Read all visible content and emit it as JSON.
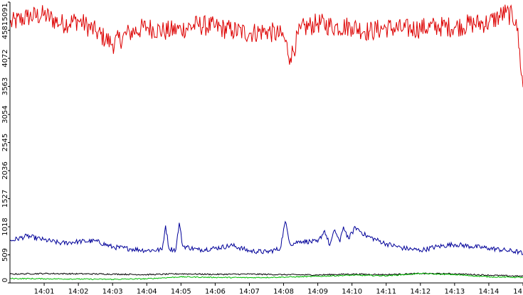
{
  "chart_data": {
    "type": "line",
    "title": "",
    "xlabel": "",
    "ylabel": "",
    "xlim_minutes_after_14_00": [
      0.0,
      15.0
    ],
    "ylim": [
      0,
      5091
    ],
    "grid": false,
    "legend": "none",
    "background": "#ffffff",
    "axis_color": "#000000",
    "y_ticks": [
      0,
      509,
      1018,
      1527,
      2036,
      2545,
      3054,
      3563,
      4072,
      4581,
      5091
    ],
    "x_ticks": [
      {
        "label": "14:01",
        "minute": 1
      },
      {
        "label": "14:02",
        "minute": 2
      },
      {
        "label": "14:03",
        "minute": 3
      },
      {
        "label": "14:04",
        "minute": 4
      },
      {
        "label": "14:05",
        "minute": 5
      },
      {
        "label": "14:06",
        "minute": 6
      },
      {
        "label": "14:07",
        "minute": 7
      },
      {
        "label": "14:08",
        "minute": 8
      },
      {
        "label": "14:09",
        "minute": 9
      },
      {
        "label": "14:10",
        "minute": 10
      },
      {
        "label": "14:11",
        "minute": 11
      },
      {
        "label": "14:12",
        "minute": 12
      },
      {
        "label": "14:13",
        "minute": 13
      },
      {
        "label": "14:14",
        "minute": 14
      },
      {
        "label": "14",
        "minute": 15
      }
    ],
    "series": [
      {
        "color": "#dd0000",
        "points": [
          [
            0.0,
            4700
          ],
          [
            0.5,
            4820
          ],
          [
            1.0,
            4860
          ],
          [
            1.5,
            4700
          ],
          [
            2.0,
            4760
          ],
          [
            2.5,
            4560
          ],
          [
            3.0,
            4330
          ],
          [
            3.5,
            4540
          ],
          [
            4.0,
            4640
          ],
          [
            4.5,
            4560
          ],
          [
            5.0,
            4600
          ],
          [
            5.5,
            4680
          ],
          [
            6.0,
            4640
          ],
          [
            6.5,
            4580
          ],
          [
            7.0,
            4530
          ],
          [
            7.5,
            4570
          ],
          [
            8.0,
            4470
          ],
          [
            8.2,
            4080
          ],
          [
            8.5,
            4600
          ],
          [
            9.0,
            4710
          ],
          [
            9.5,
            4650
          ],
          [
            10.0,
            4650
          ],
          [
            10.5,
            4560
          ],
          [
            11.0,
            4630
          ],
          [
            11.5,
            4600
          ],
          [
            12.0,
            4620
          ],
          [
            12.5,
            4650
          ],
          [
            13.0,
            4640
          ],
          [
            13.5,
            4700
          ],
          [
            14.0,
            4720
          ],
          [
            14.5,
            4900
          ],
          [
            14.8,
            4780
          ],
          [
            15.0,
            3550
          ]
        ]
      },
      {
        "color": "#000099",
        "points": [
          [
            0.0,
            760
          ],
          [
            0.5,
            850
          ],
          [
            1.0,
            780
          ],
          [
            1.5,
            720
          ],
          [
            2.0,
            750
          ],
          [
            2.5,
            760
          ],
          [
            3.0,
            650
          ],
          [
            3.5,
            620
          ],
          [
            4.0,
            590
          ],
          [
            4.45,
            600
          ],
          [
            4.55,
            1040
          ],
          [
            4.65,
            620
          ],
          [
            4.85,
            600
          ],
          [
            4.95,
            1090
          ],
          [
            5.05,
            670
          ],
          [
            5.5,
            600
          ],
          [
            6.0,
            630
          ],
          [
            6.5,
            680
          ],
          [
            7.0,
            580
          ],
          [
            7.5,
            560
          ],
          [
            7.9,
            620
          ],
          [
            8.05,
            1110
          ],
          [
            8.2,
            700
          ],
          [
            8.5,
            760
          ],
          [
            9.0,
            740
          ],
          [
            9.2,
            950
          ],
          [
            9.35,
            680
          ],
          [
            9.5,
            960
          ],
          [
            9.65,
            740
          ],
          [
            9.75,
            1020
          ],
          [
            9.9,
            800
          ],
          [
            10.1,
            1010
          ],
          [
            10.4,
            860
          ],
          [
            11.0,
            710
          ],
          [
            11.5,
            630
          ],
          [
            12.0,
            590
          ],
          [
            12.5,
            660
          ],
          [
            13.0,
            700
          ],
          [
            13.5,
            660
          ],
          [
            14.0,
            630
          ],
          [
            14.5,
            590
          ],
          [
            14.9,
            560
          ],
          [
            15.0,
            520
          ]
        ]
      },
      {
        "color": "#000000",
        "points": [
          [
            0.0,
            160
          ],
          [
            1.0,
            170
          ],
          [
            2.0,
            165
          ],
          [
            3.0,
            160
          ],
          [
            4.0,
            150
          ],
          [
            5.0,
            165
          ],
          [
            6.0,
            155
          ],
          [
            7.0,
            160
          ],
          [
            8.0,
            150
          ],
          [
            9.0,
            145
          ],
          [
            10.0,
            160
          ],
          [
            11.0,
            150
          ],
          [
            12.0,
            170
          ],
          [
            13.0,
            165
          ],
          [
            14.0,
            140
          ],
          [
            15.0,
            120
          ]
        ]
      },
      {
        "color": "#00bb00",
        "points": [
          [
            0.0,
            80
          ],
          [
            1.0,
            75
          ],
          [
            2.0,
            70
          ],
          [
            3.0,
            65
          ],
          [
            4.0,
            75
          ],
          [
            5.0,
            110
          ],
          [
            6.0,
            100
          ],
          [
            7.0,
            95
          ],
          [
            8.0,
            105
          ],
          [
            9.0,
            120
          ],
          [
            10.0,
            140
          ],
          [
            11.0,
            130
          ],
          [
            12.0,
            170
          ],
          [
            13.0,
            150
          ],
          [
            14.0,
            110
          ],
          [
            15.0,
            100
          ]
        ]
      }
    ]
  }
}
